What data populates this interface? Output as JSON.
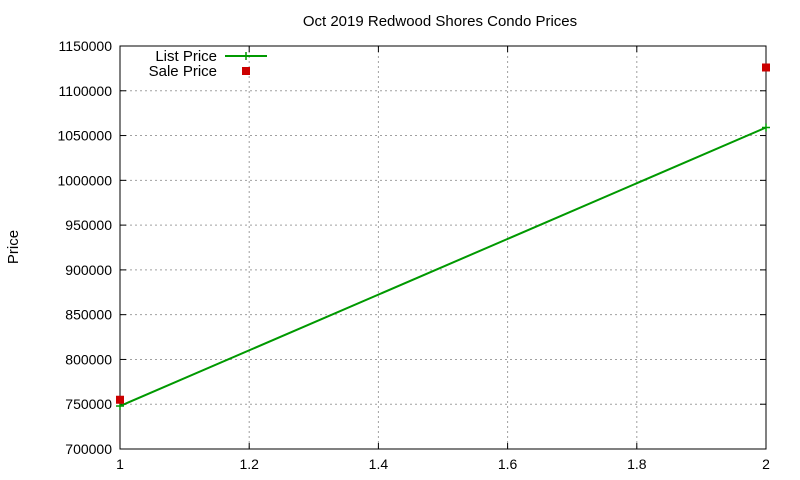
{
  "chart_data": {
    "type": "line",
    "title": "Oct 2019 Redwood Shores Condo Prices",
    "xlabel": "",
    "ylabel": "Price",
    "xlim": [
      1,
      2
    ],
    "ylim": [
      700000,
      1150000
    ],
    "x_ticks": [
      "1",
      "1.2",
      "1.4",
      "1.6",
      "1.8",
      "2"
    ],
    "y_ticks": [
      "700000",
      "750000",
      "800000",
      "850000",
      "900000",
      "950000",
      "1000000",
      "1050000",
      "1100000",
      "1150000"
    ],
    "grid": true,
    "legend_position": "top-left",
    "series": [
      {
        "name": "List Price",
        "style": "line+cross",
        "color": "#009900",
        "points": [
          {
            "x": 1,
            "y": 748000
          },
          {
            "x": 2,
            "y": 1059000
          }
        ]
      },
      {
        "name": "Sale Price",
        "style": "square-markers",
        "color": "#cc0000",
        "points": [
          {
            "x": 1,
            "y": 755000
          },
          {
            "x": 2,
            "y": 1126000
          }
        ]
      }
    ]
  }
}
